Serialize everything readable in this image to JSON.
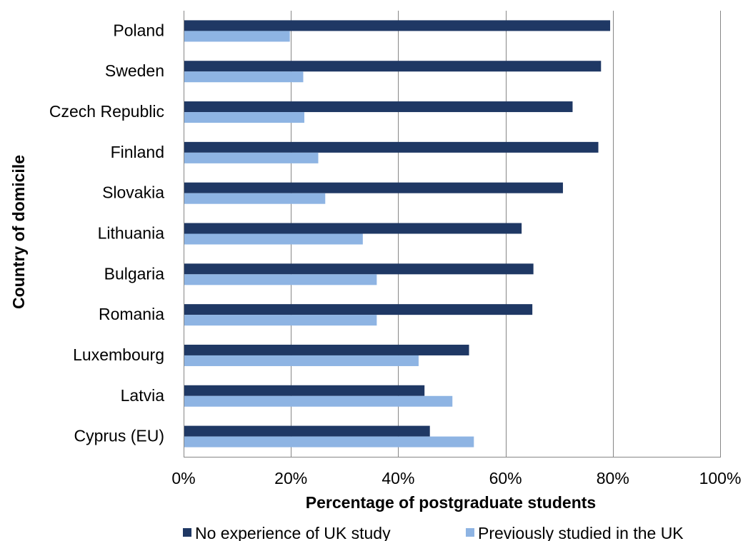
{
  "chart_data": {
    "type": "bar",
    "orientation": "horizontal",
    "xlabel": "Percentage of postgraduate students",
    "ylabel": "Country of domicile",
    "xlim": [
      0,
      100
    ],
    "x_ticks": [
      "0%",
      "20%",
      "40%",
      "60%",
      "80%",
      "100%"
    ],
    "grid": true,
    "legend_position": "bottom",
    "categories": [
      "Poland",
      "Sweden",
      "Czech Republic",
      "Finland",
      "Slovakia",
      "Lithuania",
      "Bulgaria",
      "Romania",
      "Luxembourg",
      "Latvia",
      "Cyprus (EU)"
    ],
    "series": [
      {
        "name": "No experience of UK study",
        "color": "#1f3864",
        "values": [
          79.5,
          77.8,
          72.5,
          77.3,
          70.7,
          63.0,
          65.2,
          65.0,
          53.2,
          44.9,
          45.9
        ]
      },
      {
        "name": "Previously studied in the UK",
        "color": "#8eb4e3",
        "values": [
          19.8,
          22.3,
          22.5,
          25.1,
          26.4,
          33.4,
          36.0,
          36.0,
          43.8,
          50.1,
          54.1
        ]
      }
    ]
  }
}
